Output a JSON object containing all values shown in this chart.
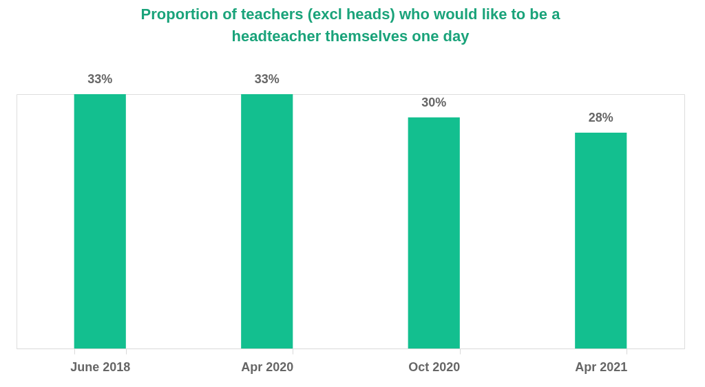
{
  "chart_data": {
    "type": "bar",
    "title": "Proportion of teachers (excl heads) who would like to be a headteacher themselves one day",
    "categories": [
      "June 2018",
      "Apr 2020",
      "Oct 2020",
      "Apr 2021"
    ],
    "values": [
      33,
      33,
      30,
      28
    ],
    "value_labels": [
      "33%",
      "33%",
      "30%",
      "28%"
    ],
    "color": "#13bf8f"
  }
}
